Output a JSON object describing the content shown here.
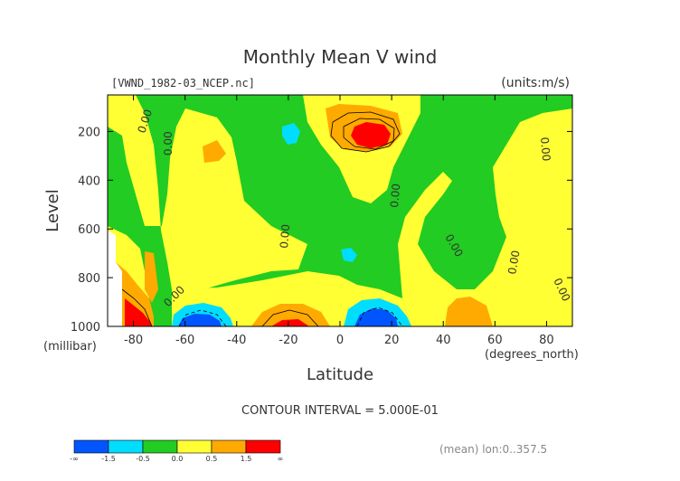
{
  "chart_data": {
    "type": "contour",
    "title": "Monthly Mean V wind",
    "source_label": "[VWND_1982-03_NCEP.nc]",
    "units_label": "(units:m/s)",
    "xlabel": "Latitude",
    "x_units": "(degrees_north)",
    "ylabel": "Level",
    "y_units": "(millibar)",
    "xlim": [
      -90,
      90
    ],
    "ylim": [
      1000,
      50
    ],
    "x_ticks": [
      -80,
      -60,
      -40,
      -20,
      0,
      20,
      40,
      60,
      80
    ],
    "y_ticks": [
      200,
      400,
      600,
      800,
      1000
    ],
    "contour_interval_text": "CONTOUR INTERVAL = 5.000E-01",
    "mean_text": "(mean) lon:0..357.5",
    "contour_labels": [
      "0.00"
    ],
    "colorbar": {
      "labels": [
        "-∞",
        "-1.5",
        "-0.5",
        "0.0",
        "0.5",
        "1.5",
        "∞"
      ],
      "colors": [
        "#0055ff",
        "#00ddff",
        "#22cc22",
        "#ffff33",
        "#ffaa00",
        "#ff0000"
      ]
    }
  },
  "colors": {
    "negative_strong": "#0055ff",
    "negative": "#00ddff",
    "near_zero_negative": "#22cc22",
    "near_zero_positive": "#ffff33",
    "positive": "#ffaa00",
    "positive_strong": "#ff0000"
  }
}
